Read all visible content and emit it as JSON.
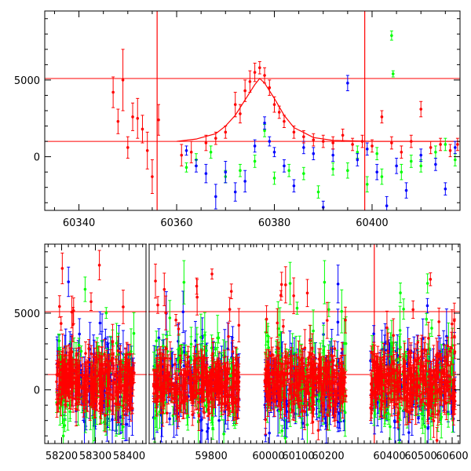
{
  "colors": {
    "red": "#ff0000",
    "green": "#00ff00",
    "blue": "#0000ff",
    "frame": "#000000"
  },
  "chart_data": [
    {
      "type": "scatter",
      "title": "",
      "xlabel": "",
      "ylabel": "",
      "xlim": [
        60333,
        60418
      ],
      "ylim": [
        -3500,
        9500
      ],
      "xticks": [
        60340,
        60360,
        60380,
        60400
      ],
      "yticks": [
        0,
        5000
      ],
      "hlines": [
        5100,
        1000
      ],
      "vlines": [
        60356,
        60398.5
      ],
      "model_curve": {
        "color": "red",
        "x": [
          60360,
          60364,
          60368,
          60370,
          60372,
          60374,
          60376,
          60377,
          60378,
          60380,
          60382,
          60384,
          60388,
          60392,
          60400,
          60410,
          60418
        ],
        "y": [
          1000,
          1150,
          1500,
          2000,
          2700,
          3700,
          4700,
          5100,
          4800,
          3800,
          2700,
          1900,
          1250,
          1060,
          1000,
          1000,
          1000
        ]
      },
      "series": [
        {
          "color": "red",
          "points": [
            [
              60347,
              4200,
              1000
            ],
            [
              60348,
              2300,
              800
            ],
            [
              60349,
              5000,
              2000
            ],
            [
              60350,
              600,
              700
            ],
            [
              60351,
              2600,
              900
            ],
            [
              60352,
              2500,
              1300
            ],
            [
              60353,
              1800,
              900
            ],
            [
              60354,
              400,
              1200
            ],
            [
              60355,
              -1300,
              1100
            ],
            [
              60356.3,
              2400,
              1000
            ],
            [
              60361,
              100,
              700
            ],
            [
              60363,
              300,
              700
            ],
            [
              60366,
              900,
              500
            ],
            [
              60368,
              1200,
              400
            ],
            [
              60370,
              1600,
              400
            ],
            [
              60372,
              3400,
              800
            ],
            [
              60373,
              2800,
              600
            ],
            [
              60374,
              4300,
              700
            ],
            [
              60375,
              4900,
              700
            ],
            [
              60376,
              5500,
              600
            ],
            [
              60377,
              5800,
              400
            ],
            [
              60378,
              5300,
              500
            ],
            [
              60379,
              4500,
              500
            ],
            [
              60380,
              3400,
              500
            ],
            [
              60381,
              2900,
              400
            ],
            [
              60382,
              2300,
              400
            ],
            [
              60384,
              1600,
              400
            ],
            [
              60386,
              1300,
              400
            ],
            [
              60388,
              1100,
              400
            ],
            [
              60390,
              1000,
              400
            ],
            [
              60392,
              900,
              400
            ],
            [
              60394,
              1400,
              400
            ],
            [
              60396,
              800,
              400
            ],
            [
              60398,
              1000,
              400
            ],
            [
              60400,
              700,
              400
            ],
            [
              60402,
              2600,
              400
            ],
            [
              60404,
              900,
              400
            ],
            [
              60406,
              300,
              400
            ],
            [
              60408,
              1000,
              400
            ],
            [
              60410,
              3100,
              500
            ],
            [
              60412,
              600,
              400
            ],
            [
              60414,
              800,
              400
            ],
            [
              60416,
              400,
              400
            ],
            [
              60417.5,
              800,
              400
            ]
          ]
        },
        {
          "color": "green",
          "points": [
            [
              60362,
              -700,
              300
            ],
            [
              60364,
              -200,
              400
            ],
            [
              60367,
              300,
              400
            ],
            [
              60370,
              -1300,
              400
            ],
            [
              60373,
              -900,
              400
            ],
            [
              60376,
              -300,
              400
            ],
            [
              60378,
              1700,
              400
            ],
            [
              60380,
              -1400,
              400
            ],
            [
              60383,
              -900,
              400
            ],
            [
              60386,
              -1100,
              400
            ],
            [
              60389,
              -2300,
              400
            ],
            [
              60392,
              -800,
              400
            ],
            [
              60395,
              -900,
              500
            ],
            [
              60397,
              300,
              400
            ],
            [
              60399,
              -1800,
              500
            ],
            [
              60401,
              200,
              400
            ],
            [
              60402,
              -1300,
              500
            ],
            [
              60404,
              7900,
              300
            ],
            [
              60404.3,
              5400,
              200
            ],
            [
              60406,
              -1000,
              500
            ],
            [
              60408,
              -300,
              400
            ],
            [
              60410,
              -600,
              400
            ],
            [
              60413,
              300,
              400
            ],
            [
              60415,
              800,
              400
            ],
            [
              60417,
              -200,
              400
            ]
          ]
        },
        {
          "color": "blue",
          "points": [
            [
              60362,
              400,
              300
            ],
            [
              60364,
              -600,
              400
            ],
            [
              60366,
              -1100,
              600
            ],
            [
              60368,
              -2600,
              800
            ],
            [
              60370,
              -1000,
              700
            ],
            [
              60372,
              -2300,
              600
            ],
            [
              60374,
              -1600,
              700
            ],
            [
              60376,
              700,
              400
            ],
            [
              60378,
              2200,
              400
            ],
            [
              60379,
              1000,
              300
            ],
            [
              60380,
              300,
              300
            ],
            [
              60382,
              -600,
              400
            ],
            [
              60384,
              -1900,
              400
            ],
            [
              60386,
              600,
              400
            ],
            [
              60388,
              200,
              400
            ],
            [
              60390,
              -3300,
              400
            ],
            [
              60392,
              100,
              400
            ],
            [
              60395,
              4800,
              500
            ],
            [
              60397,
              -200,
              400
            ],
            [
              60399,
              500,
              400
            ],
            [
              60401,
              -1000,
              500
            ],
            [
              60403,
              -3200,
              600
            ],
            [
              60405,
              -600,
              500
            ],
            [
              60407,
              -2200,
              500
            ],
            [
              60410,
              100,
              400
            ],
            [
              60413,
              -500,
              400
            ],
            [
              60415,
              -2100,
              400
            ],
            [
              60417,
              600,
              400
            ]
          ]
        }
      ]
    },
    {
      "type": "scatter",
      "title": "",
      "xlabel": "",
      "ylabel": "",
      "ylim": [
        -3500,
        9500
      ],
      "yticks": [
        0,
        5000
      ],
      "hlines": [
        5100,
        1000
      ],
      "vlines": [
        60352
      ],
      "segments": [
        {
          "xlim": [
            58150,
            58450
          ],
          "xticks": [
            58200,
            58300,
            58400
          ],
          "visits": [
            [
              58185,
              58415
            ]
          ]
        },
        {
          "xlim": [
            59580,
            59950
          ],
          "xticks": [
            59800
          ],
          "visits": [
            [
              59595,
              59900
            ]
          ]
        },
        {
          "xlim": [
            59950,
            60300
          ],
          "xticks": [
            60000,
            60100,
            60200
          ],
          "visits": [
            [
              59985,
              60260
            ]
          ]
        },
        {
          "xlim": [
            60300,
            60625
          ],
          "xticks": [
            60400,
            60500,
            60600
          ],
          "visits": [
            [
              60340,
              60610
            ]
          ]
        }
      ],
      "cluster_centre": 500,
      "cluster_spread": 1500,
      "series_colors": [
        "red",
        "green",
        "blue"
      ]
    }
  ]
}
